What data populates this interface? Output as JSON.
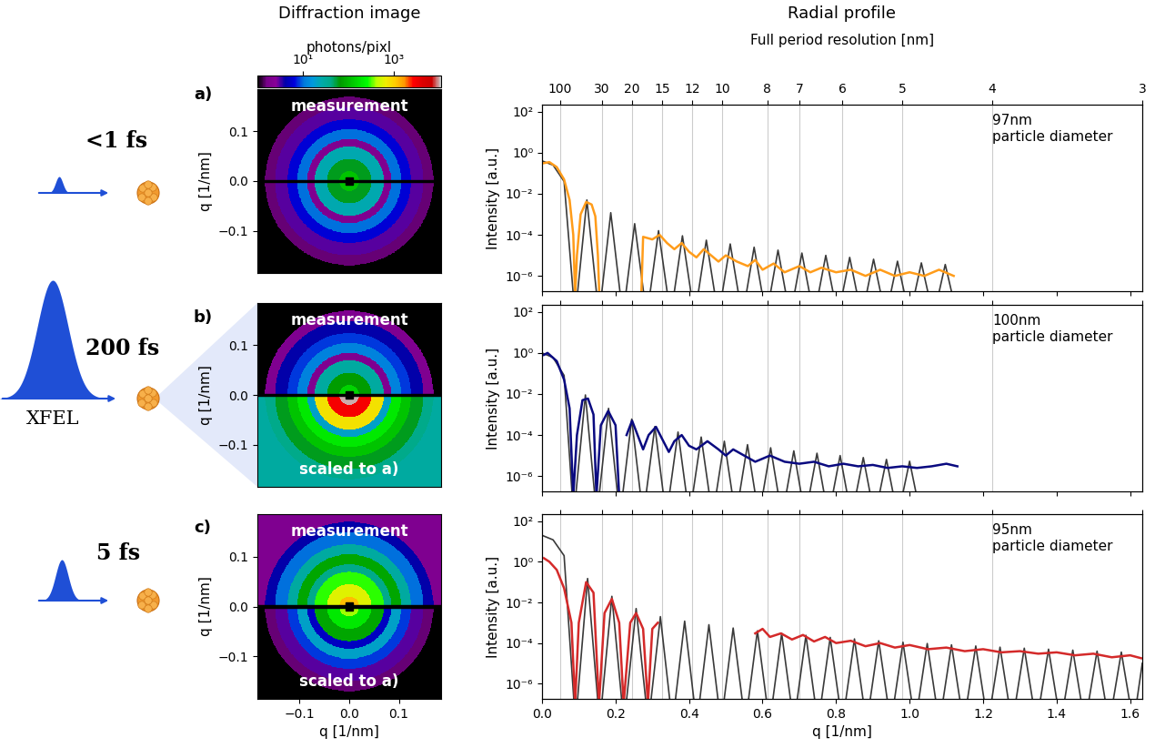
{
  "titles": {
    "images": "Diffraction image",
    "profiles": "Radial profile"
  },
  "colorbar": {
    "label": "photons/pixl",
    "log": true,
    "range": [
      1,
      11000
    ],
    "ticks": [
      {
        "value": 10,
        "label": "10¹"
      },
      {
        "value": 1000,
        "label": "10³"
      }
    ]
  },
  "chart_data": [
    {
      "type": "line",
      "panel": "a)",
      "pulse": "<1 fs",
      "log": "y",
      "grid": true,
      "tick_labels": "y",
      "annotation": "97nm\nparticle diameter",
      "ylabel": "Intensity [a.u.]",
      "xlim": [
        0,
        1.633
      ],
      "xticks": [
        0.0,
        0.2,
        0.4,
        0.6,
        0.8,
        1.0,
        1.2,
        1.4,
        1.6
      ],
      "ylim": [
        1.8e-07,
        220
      ],
      "yticks": [
        {
          "value": 1e-06,
          "label": "10⁻⁶"
        },
        {
          "value": 0.0001,
          "label": "10⁻⁴"
        },
        {
          "value": 0.01,
          "label": "10⁻²"
        },
        {
          "value": 1,
          "label": "10⁰"
        },
        {
          "value": 100,
          "label": "10²"
        }
      ],
      "top_label": "Full period resolution [nm]",
      "top_ticks": [
        {
          "value": 0.049,
          "label": "100"
        },
        {
          "value": 0.163,
          "label": "30"
        },
        {
          "value": 0.245,
          "label": "20"
        },
        {
          "value": 0.327,
          "label": "15"
        },
        {
          "value": 0.408,
          "label": "12"
        },
        {
          "value": 0.49,
          "label": "10"
        },
        {
          "value": 0.613,
          "label": "8"
        },
        {
          "value": 0.7,
          "label": "7"
        },
        {
          "value": 0.817,
          "label": "6"
        },
        {
          "value": 0.98,
          "label": "5"
        },
        {
          "value": 1.225,
          "label": "4"
        },
        {
          "value": 1.633,
          "label": "3"
        }
      ],
      "series": [
        {
          "color": "#3a3a3a",
          "x": [
            0,
            0.03,
            0.06,
            0.09,
            0.122,
            0.155,
            0.187,
            0.22,
            0.252,
            0.285,
            0.317,
            0.35,
            0.382,
            0.415,
            0.447,
            0.48,
            0.512,
            0.545,
            0.577,
            0.61,
            0.642,
            0.675,
            0.707,
            0.74,
            0.772,
            0.805,
            0.837,
            0.87,
            0.902,
            0.935,
            0.967,
            1.0,
            1.032,
            1.065,
            1.097,
            1.13
          ],
          "values": [
            0.4,
            0.25,
            0.04,
            1e-08,
            0.005,
            1e-08,
            0.0012,
            1e-08,
            0.00035,
            1e-08,
            0.00016,
            1e-08,
            9e-05,
            1e-08,
            5.5e-05,
            1e-08,
            3.6e-05,
            1e-08,
            2.5e-05,
            1e-08,
            1.8e-05,
            1e-08,
            1.3e-05,
            1e-08,
            1e-05,
            1e-08,
            8e-06,
            1e-08,
            6.5e-06,
            1e-08,
            5.2e-06,
            1e-08,
            4.3e-06,
            1e-08,
            3.6e-06,
            1e-08
          ]
        },
        {
          "color": "#ff9c1a",
          "x": [
            0.0,
            0.02,
            0.04,
            0.06,
            0.075,
            0.085,
            0.09,
            0.095,
            0.105,
            0.12,
            0.135,
            0.145,
            0.152,
            0.156,
            null,
            0.27,
            0.275,
            0.3,
            0.32,
            0.34,
            0.36,
            0.38,
            0.4,
            0.42,
            0.44,
            0.46,
            0.48,
            0.5,
            0.53,
            0.56,
            0.58,
            0.6,
            0.63,
            0.66,
            0.7,
            0.73,
            0.76,
            0.8,
            0.84,
            0.88,
            0.92,
            0.96,
            1.0,
            1.04,
            1.08,
            1.12
          ],
          "values": [
            0.3,
            0.35,
            0.2,
            0.05,
            0.005,
            0.0001,
            1e-07,
            1e-05,
            0.001,
            0.004,
            0.003,
            0.0008,
            1e-05,
            1e-07,
            null,
            1e-07,
            8e-05,
            6e-05,
            0.0001,
            4e-05,
            2e-05,
            4e-05,
            1.5e-05,
            8e-06,
            2e-05,
            1e-05,
            5e-06,
            1e-05,
            5e-06,
            3e-06,
            6e-06,
            2e-06,
            4e-06,
            1.5e-06,
            3e-06,
            1.5e-06,
            2.5e-06,
            1.5e-06,
            2e-06,
            1e-06,
            2e-06,
            1e-06,
            1.5e-06,
            1e-06,
            2e-06,
            1e-06
          ]
        }
      ],
      "image": {
        "xlim": [
          -0.185,
          0.185
        ],
        "ylim": [
          -0.185,
          0.185
        ],
        "yticks": [
          {
            "value": -0.1,
            "label": "−0.1"
          },
          0.0,
          0.1
        ],
        "ylabel": "q [1/nm]",
        "ring_edges": [
          0,
          0.02,
          0.045,
          0.07,
          0.085,
          0.105,
          0.125,
          0.15,
          0.17,
          0.27
        ],
        "halves": [
          {
            "text": "measurement",
            "photons": [
              120,
              60,
              25,
              2,
              10,
              6,
              3,
              1.5,
              1
            ]
          }
        ]
      }
    },
    {
      "type": "line",
      "panel": "b)",
      "pulse": "200 fs",
      "source": "XFEL",
      "log": "y",
      "grid": true,
      "tick_labels": "y",
      "annotation": "100nm\nparticle diameter",
      "ylabel": "Intensity [a.u.]",
      "xlim": [
        0,
        1.633
      ],
      "xticks": [
        0.0,
        0.2,
        0.4,
        0.6,
        0.8,
        1.0,
        1.2,
        1.4,
        1.6
      ],
      "ylim": [
        1.8e-07,
        220
      ],
      "yticks": [
        {
          "value": 1e-06,
          "label": "10⁻⁶"
        },
        {
          "value": 0.0001,
          "label": "10⁻⁴"
        },
        {
          "value": 0.01,
          "label": "10⁻²"
        },
        {
          "value": 1,
          "label": "10⁰"
        },
        {
          "value": 100,
          "label": "10²"
        }
      ],
      "grid_lines": [
        0.049,
        0.163,
        0.245,
        0.327,
        0.408,
        0.49,
        0.613,
        0.7,
        0.817,
        0.98,
        1.225,
        1.633
      ],
      "series": [
        {
          "color": "#3a3a3a",
          "x": [
            0,
            0.03,
            0.06,
            0.086,
            0.118,
            0.149,
            0.181,
            0.212,
            0.244,
            0.275,
            0.307,
            0.338,
            0.37,
            0.401,
            0.433,
            0.464,
            0.496,
            0.527,
            0.559,
            0.59,
            0.622,
            0.653,
            0.685,
            0.716,
            0.748,
            0.779,
            0.811,
            0.842,
            0.874,
            0.905,
            0.937,
            0.968,
            1.0,
            1.031
          ],
          "values": [
            1.0,
            0.6,
            0.08,
            1e-08,
            0.009,
            1e-08,
            0.002,
            1e-08,
            0.0006,
            1e-08,
            0.00026,
            1e-08,
            0.00014,
            1e-08,
            8e-05,
            1e-08,
            5e-05,
            1e-08,
            3.4e-05,
            1e-08,
            2.4e-05,
            1e-08,
            1.7e-05,
            1e-08,
            1.3e-05,
            1e-08,
            1e-05,
            1e-08,
            8e-06,
            1e-08,
            6.5e-06,
            1e-08,
            5.3e-06,
            1e-08
          ]
        },
        {
          "color": "#0a0a80",
          "x": [
            0.005,
            0.015,
            0.04,
            0.06,
            0.075,
            0.085,
            0.095,
            0.11,
            0.125,
            0.14,
            0.148,
            0.16,
            0.18,
            0.2,
            0.21,
            null,
            0.23,
            0.245,
            0.26,
            0.275,
            0.29,
            0.31,
            0.33,
            0.345,
            0.36,
            0.38,
            0.4,
            0.42,
            0.45,
            0.48,
            0.5,
            0.52,
            0.55,
            0.58,
            0.62,
            0.66,
            0.7,
            0.74,
            0.78,
            0.82,
            0.86,
            0.9,
            0.94,
            0.98,
            1.02,
            1.06,
            1.1,
            1.13
          ],
          "values": [
            0.8,
            1.0,
            0.4,
            0.05,
            0.002,
            1e-07,
            0.0001,
            0.005,
            0.006,
            0.001,
            1e-07,
            0.0003,
            0.0015,
            0.0003,
            1e-07,
            null,
            0.0001,
            0.0005,
            0.0001,
            2e-05,
            0.0001,
            0.00025,
            5e-05,
            1.5e-05,
            5e-05,
            0.0001,
            3e-05,
            2e-05,
            5e-05,
            2e-05,
            1e-05,
            2e-05,
            1e-05,
            5e-06,
            1e-05,
            5e-06,
            4e-06,
            5e-06,
            3e-06,
            4e-06,
            3e-06,
            3.5e-06,
            2.5e-06,
            3e-06,
            2.5e-06,
            3e-06,
            4e-06,
            3e-06
          ]
        }
      ],
      "image": {
        "xlim": [
          -0.185,
          0.185
        ],
        "ylim": [
          -0.185,
          0.185
        ],
        "yticks": [
          {
            "value": -0.1,
            "label": "−0.1"
          },
          0.0,
          0.1
        ],
        "ylabel": "q [1/nm]",
        "ring_edges": [
          0,
          0.02,
          0.045,
          0.07,
          0.085,
          0.105,
          0.125,
          0.15,
          0.17,
          0.27
        ],
        "halves": [
          {
            "text": "measurement",
            "photons": [
              150,
              70,
              30,
              2,
              12,
              8,
              4,
              2,
              1
            ]
          },
          {
            "text": "scaled to a)",
            "photons": [
              10000,
              3000,
              800,
              20,
              200,
              120,
              60,
              40,
              30
            ]
          }
        ]
      }
    },
    {
      "type": "line",
      "panel": "c)",
      "pulse": "5 fs",
      "log": "y",
      "grid": true,
      "annotation": "95nm\nparticle diameter",
      "xlabel": "q [1/nm]",
      "ylabel": "Intensity [a.u.]",
      "xlim": [
        0,
        1.633
      ],
      "xticks": [
        0.0,
        0.2,
        0.4,
        0.6,
        0.8,
        1.0,
        1.2,
        1.4,
        1.6
      ],
      "ylim": [
        1.8e-07,
        220
      ],
      "yticks": [
        {
          "value": 1e-06,
          "label": "10⁻⁶"
        },
        {
          "value": 0.0001,
          "label": "10⁻⁴"
        },
        {
          "value": 0.01,
          "label": "10⁻²"
        },
        {
          "value": 1,
          "label": "10⁰"
        },
        {
          "value": 100,
          "label": "10²"
        }
      ],
      "grid_lines": [
        0.049,
        0.163,
        0.245,
        0.327,
        0.408,
        0.49,
        0.613,
        0.7,
        0.817,
        0.98,
        1.225,
        1.633
      ],
      "series": [
        {
          "color": "#3a3a3a",
          "x": [
            0,
            0.03,
            0.06,
            0.091,
            0.124,
            0.157,
            0.19,
            0.223,
            0.256,
            0.289,
            0.322,
            0.355,
            0.388,
            0.421,
            0.454,
            0.487,
            0.52,
            0.553,
            0.586,
            0.619,
            0.652,
            0.685,
            0.718,
            0.751,
            0.784,
            0.817,
            0.85,
            0.883,
            0.916,
            0.949,
            0.982,
            1.015,
            1.048,
            1.081,
            1.114,
            1.147,
            1.18,
            1.213,
            1.246,
            1.279,
            1.312,
            1.345,
            1.378,
            1.411,
            1.444,
            1.477,
            1.51,
            1.543,
            1.576,
            1.609,
            1.633
          ],
          "values": [
            20,
            12,
            2,
            1e-08,
            0.15,
            1e-08,
            0.02,
            1e-08,
            0.005,
            1e-08,
            0.002,
            1e-08,
            0.0012,
            1e-08,
            0.0008,
            1e-08,
            0.00055,
            1e-08,
            0.0004,
            1e-08,
            0.0003,
            1e-08,
            0.00024,
            1e-08,
            0.00019,
            1e-08,
            0.00016,
            1e-08,
            0.00013,
            1e-08,
            0.00011,
            1e-08,
            9.5e-05,
            1e-08,
            8.2e-05,
            1e-08,
            7.2e-05,
            1e-08,
            6.3e-05,
            1e-08,
            5.6e-05,
            1e-08,
            5e-05,
            1e-08,
            4.5e-05,
            1e-08,
            4e-05,
            1e-08,
            3.6e-05,
            1e-08,
            1e-05
          ]
        },
        {
          "color": "#d42a2a",
          "x": [
            0.005,
            0.02,
            0.04,
            0.06,
            0.08,
            0.09,
            0.1,
            0.12,
            0.14,
            0.155,
            0.17,
            0.19,
            0.21,
            0.222,
            0.24,
            0.256,
            0.275,
            0.288,
            0.3,
            0.315,
            null,
            0.58,
            0.6,
            0.62,
            0.65,
            0.68,
            0.71,
            0.74,
            0.77,
            0.8,
            0.84,
            0.88,
            0.92,
            0.96,
            1.0,
            1.05,
            1.1,
            1.15,
            1.2,
            1.25,
            1.3,
            1.35,
            1.4,
            1.45,
            1.5,
            1.55,
            1.6,
            1.63
          ],
          "values": [
            1.5,
            1.0,
            0.4,
            0.05,
            0.001,
            1e-07,
            0.001,
            0.1,
            0.03,
            1e-07,
            0.003,
            0.015,
            0.001,
            1e-07,
            0.001,
            0.003,
            0.0005,
            1e-07,
            0.0005,
            0.001,
            null,
            0.0003,
            0.0005,
            0.0002,
            0.0003,
            0.00015,
            0.00025,
            0.00012,
            0.0002,
            0.0001,
            0.00013,
            7e-05,
            0.0001,
            6e-05,
            8e-05,
            5e-05,
            6e-05,
            4e-05,
            5e-05,
            3.5e-05,
            4e-05,
            3e-05,
            3.5e-05,
            2.5e-05,
            3e-05,
            2e-05,
            2.5e-05,
            1.8e-05
          ]
        }
      ],
      "image": {
        "xlim": [
          -0.185,
          0.185
        ],
        "ylim": [
          -0.185,
          0.185
        ],
        "xticks": [
          {
            "value": -0.1,
            "label": "−0.1"
          },
          0.0,
          0.1
        ],
        "xlabel": "q [1/nm]",
        "yticks": [
          {
            "value": -0.1,
            "label": "−0.1"
          },
          0.0,
          0.1
        ],
        "ylabel": "q [1/nm]",
        "ring_edges": [
          0,
          0.02,
          0.045,
          0.07,
          0.085,
          0.105,
          0.125,
          0.15,
          0.17,
          0.27
        ],
        "halves": [
          {
            "text": "measurement",
            "photons": [
              1200,
              600,
              300,
              40,
              80,
              30,
              10,
              4,
              2
            ]
          },
          {
            "text": "scaled to a)",
            "photons": [
              400,
              200,
              80,
              5,
              20,
              8,
              3,
              1.5,
              1
            ]
          }
        ]
      }
    }
  ]
}
